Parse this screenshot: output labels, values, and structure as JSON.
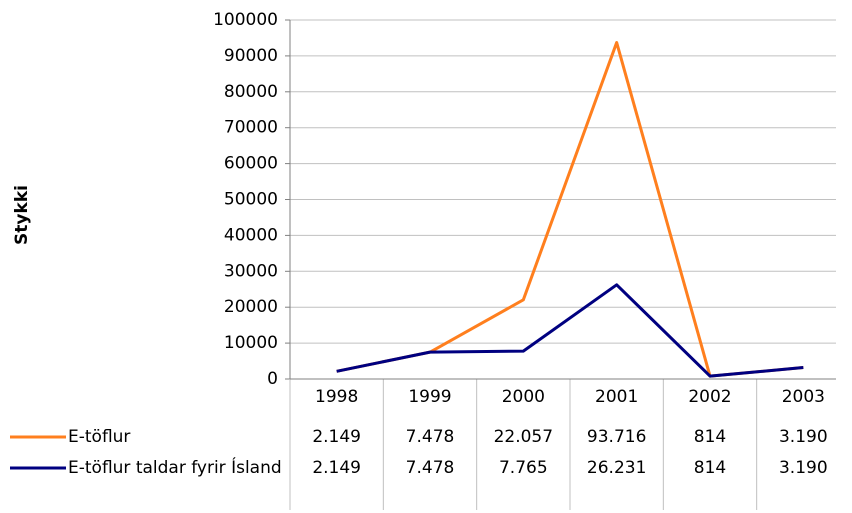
{
  "chart_data": {
    "type": "line",
    "y_label": "Stykki",
    "categories": [
      "1998",
      "1999",
      "2000",
      "2001",
      "2002",
      "2003"
    ],
    "series": [
      {
        "name": "E-töflur",
        "color": "#ff7f1e",
        "values": [
          2149,
          7478,
          22057,
          93716,
          814,
          3190
        ],
        "value_labels": [
          "2.149",
          "7.478",
          "22.057",
          "93.716",
          "814",
          "3.190"
        ]
      },
      {
        "name": "E-töflur taldar fyrir Ísland",
        "color": "#000080",
        "values": [
          2149,
          7478,
          7765,
          26231,
          814,
          3190
        ],
        "value_labels": [
          "2.149",
          "7.478",
          "7.765",
          "26.231",
          "814",
          "3.190"
        ]
      }
    ],
    "ylim": [
      0,
      100000
    ],
    "yticks": [
      0,
      10000,
      20000,
      30000,
      40000,
      50000,
      60000,
      70000,
      80000,
      90000,
      100000
    ],
    "grid": true
  }
}
